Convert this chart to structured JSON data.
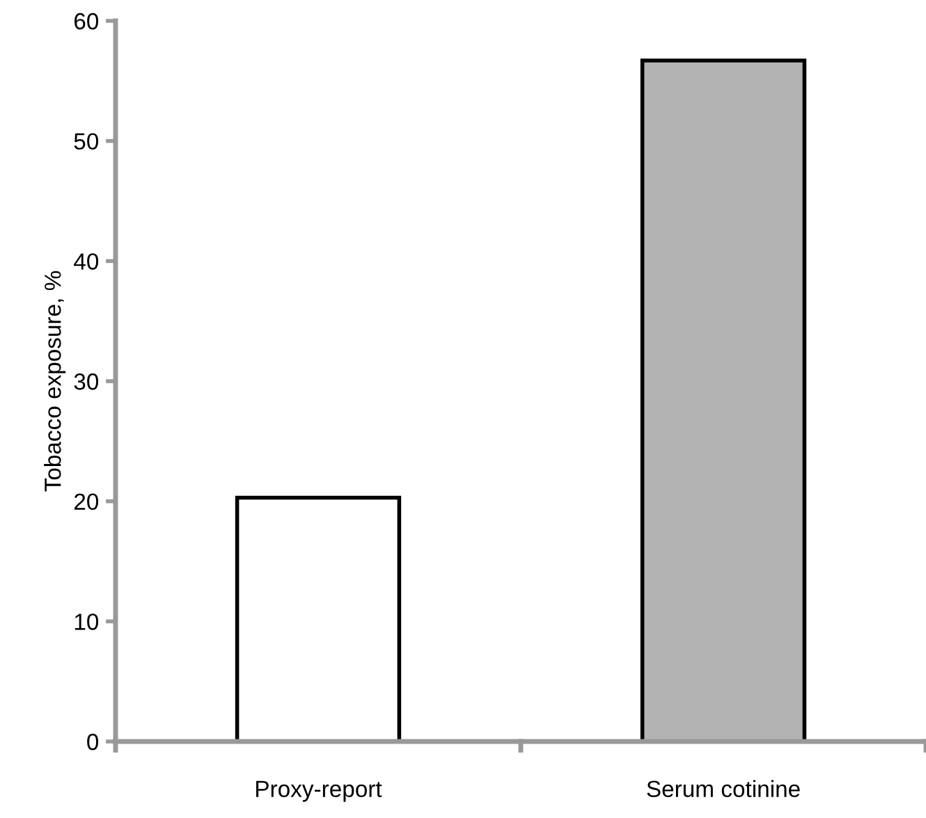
{
  "chart_data": {
    "type": "bar",
    "ylabel": "Tobacco exposure, %",
    "categories": [
      "Proxy-report",
      "Serum cotinine"
    ],
    "values": [
      20.3,
      56.7
    ],
    "colors": [
      "#ffffff",
      "#b3b3b3"
    ],
    "ylim": [
      0,
      60
    ],
    "yticks": [
      0,
      10,
      20,
      30,
      40,
      50,
      60
    ],
    "grid": false,
    "legend": false
  }
}
